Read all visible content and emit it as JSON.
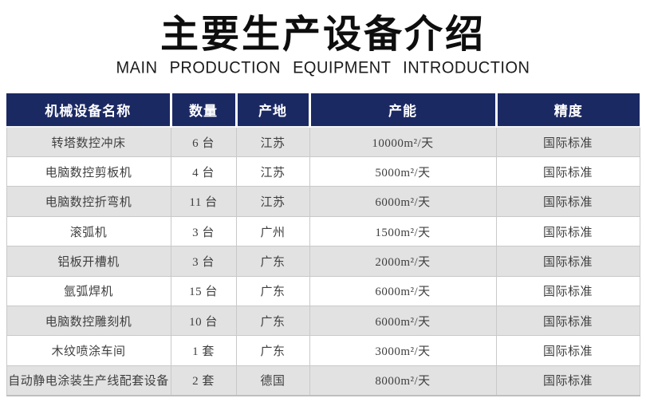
{
  "page": {
    "title": "主要生产设备介绍",
    "subtitle": "MAIN PRODUCTION EQUIPMENT INTRODUCTION"
  },
  "colors": {
    "header_bg": "#1b2963",
    "header_text": "#ffffff",
    "row_alt_bg": "#e2e2e2",
    "row_bg": "#ffffff",
    "body_text": "#3f3f3f",
    "border": "#c9c9c9",
    "title_text": "#0e0e0e"
  },
  "table": {
    "columns": [
      {
        "key": "name",
        "label": "机械设备名称"
      },
      {
        "key": "quantity",
        "label": "数量"
      },
      {
        "key": "origin",
        "label": "产地"
      },
      {
        "key": "capacity",
        "label": "产能"
      },
      {
        "key": "precision",
        "label": "精度"
      }
    ],
    "rows": [
      {
        "name": "转塔数控冲床",
        "quantity": "6 台",
        "origin": "江苏",
        "capacity": "10000m²/天",
        "precision": "国际标准"
      },
      {
        "name": "电脑数控剪板机",
        "quantity": "4 台",
        "origin": "江苏",
        "capacity": "5000m²/天",
        "precision": "国际标准"
      },
      {
        "name": "电脑数控折弯机",
        "quantity": "11 台",
        "origin": "江苏",
        "capacity": "6000m²/天",
        "precision": "国际标准"
      },
      {
        "name": "滚弧机",
        "quantity": "3 台",
        "origin": "广州",
        "capacity": "1500m²/天",
        "precision": "国际标准"
      },
      {
        "name": "铝板开槽机",
        "quantity": "3 台",
        "origin": "广东",
        "capacity": "2000m²/天",
        "precision": "国际标准"
      },
      {
        "name": "氩弧焊机",
        "quantity": "15 台",
        "origin": "广东",
        "capacity": "6000m²/天",
        "precision": "国际标准"
      },
      {
        "name": "电脑数控雕刻机",
        "quantity": "10 台",
        "origin": "广东",
        "capacity": "6000m²/天",
        "precision": "国际标准"
      },
      {
        "name": "木纹喷涂车间",
        "quantity": "1 套",
        "origin": "广东",
        "capacity": "3000m²/天",
        "precision": "国际标准"
      },
      {
        "name": "自动静电涂装生产线配套设备",
        "quantity": "2 套",
        "origin": "德国",
        "capacity": "8000m²/天",
        "precision": "国际标准"
      }
    ]
  }
}
